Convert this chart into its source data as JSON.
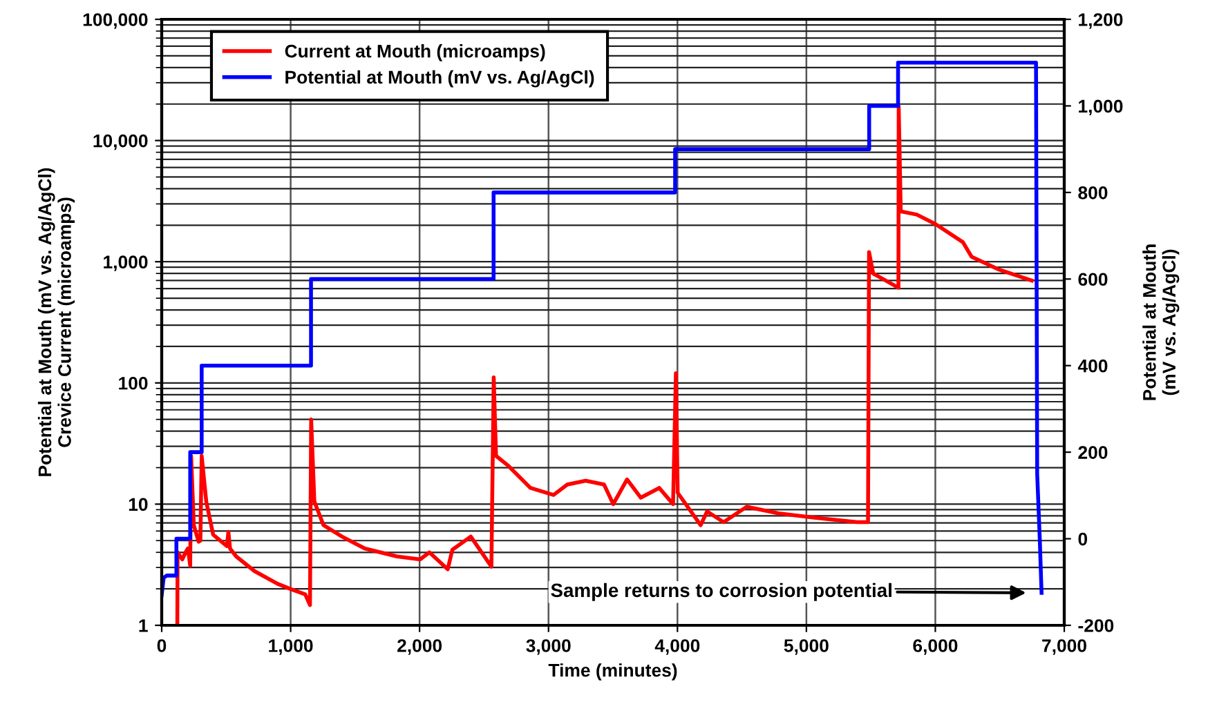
{
  "chart_data": {
    "type": "line",
    "xlabel": "Time (minutes)",
    "ylabel": "Potential at Mouth (mV vs. Ag/AgCl)\nCrevice Current (microamps)",
    "y2label": "Potential at Mouth\n(mV vs. Ag/AgCl)",
    "series": [
      {
        "name": "Current at Mouth (microamps)",
        "color": "#ff0000",
        "x": [
          121,
          123,
          160,
          185,
          203,
          221,
          228,
          249,
          286,
          300,
          310,
          346,
          399,
          506,
          517,
          530,
          578,
          720,
          899,
          1006,
          1113,
          1150,
          1159,
          1184,
          1255,
          1398,
          1576,
          1826,
          2004,
          2076,
          2218,
          2254,
          2397,
          2557,
          2575,
          2593,
          2682,
          2860,
          3039,
          3146,
          3288,
          3431,
          3502,
          3609,
          3716,
          3859,
          3966,
          3988,
          4002,
          4180,
          4230,
          4358,
          4537,
          4783,
          5072,
          5393,
          5478,
          5486,
          5518,
          5714,
          5716,
          5732,
          5856,
          6000,
          6214,
          6281,
          6495,
          6748
        ],
        "values": [
          1.0,
          4.0,
          3.5,
          4.0,
          4.3,
          3.1,
          25,
          6.7,
          4.9,
          5,
          25,
          10.4,
          5.6,
          4.5,
          5.9,
          4.3,
          3.7,
          2.8,
          2.2,
          1.98,
          1.8,
          1.47,
          50,
          10.5,
          6.7,
          5.4,
          4.3,
          3.7,
          3.5,
          4,
          2.9,
          4.2,
          5.4,
          3.05,
          111,
          25,
          21,
          13.6,
          11.9,
          14.5,
          15.6,
          14.5,
          10,
          16,
          11.3,
          13.6,
          10,
          120,
          12.4,
          6.7,
          8.7,
          7.1,
          9.5,
          8.4,
          7.7,
          7.1,
          7.1,
          1200,
          800,
          610,
          19000,
          2600,
          2450,
          2050,
          1450,
          1100,
          860,
          700
        ]
      },
      {
        "name": "Potential at Mouth (mV vs. Ag/AgCl)",
        "color": "#0000ff",
        "axis": "y2",
        "x": [
          0,
          15,
          40,
          114,
          114,
          221,
          221,
          310,
          310,
          1158,
          1158,
          2574,
          2574,
          3982,
          3982,
          5487,
          5487,
          5711,
          5711,
          6781,
          6790,
          6810,
          6824
        ],
        "values": [
          -130,
          -90,
          -85,
          -85,
          0,
          0,
          200,
          200,
          400,
          400,
          600,
          600,
          800,
          800,
          900,
          900,
          1000,
          1000,
          1100,
          1100,
          150,
          0,
          -125
        ]
      }
    ],
    "xlim": [
      0,
      7000
    ],
    "xticks": [
      0,
      {
        "value": 1000,
        "label": "1,000"
      },
      {
        "value": 2000,
        "label": "2,000"
      },
      {
        "value": 3000,
        "label": "3,000"
      },
      {
        "value": 4000,
        "label": "4,000"
      },
      {
        "value": 5000,
        "label": "5,000"
      },
      {
        "value": 6000,
        "label": "6,000"
      },
      {
        "value": 7000,
        "label": "7,000"
      }
    ],
    "log": "y",
    "ylim": [
      1,
      100000
    ],
    "yticks": [
      1,
      10,
      100,
      {
        "value": 1000,
        "label": "1,000"
      },
      {
        "value": 10000,
        "label": "10,000"
      },
      {
        "value": 100000,
        "label": "100,000"
      }
    ],
    "y2lim": [
      -200,
      1200
    ],
    "y2ticks": [
      -200,
      0,
      200,
      400,
      600,
      800,
      {
        "value": 1000,
        "label": "1,000"
      },
      {
        "value": 1200,
        "label": "1,200"
      }
    ],
    "grid": true,
    "legend": "top left",
    "line_style": "solid",
    "marker": "none",
    "annotations": [
      "Sample returns to corrosion potential"
    ]
  }
}
